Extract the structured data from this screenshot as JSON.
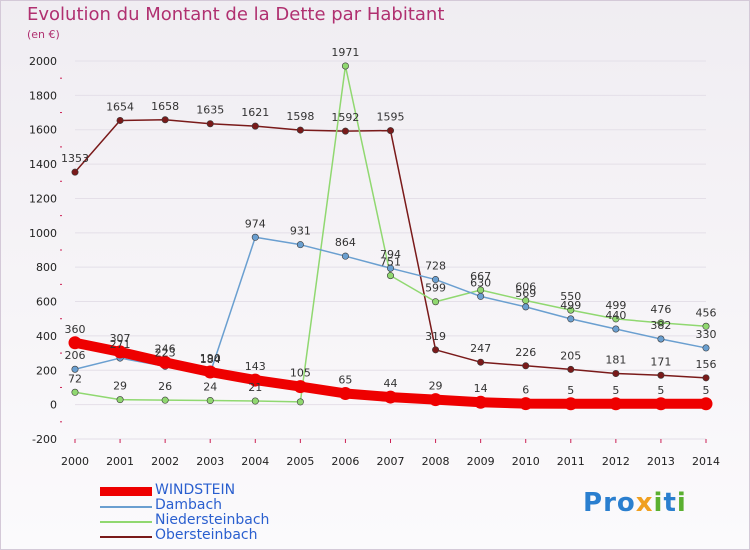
{
  "title": "Evolution du Montant de la Dette par Habitant",
  "subtitle": "(en €)",
  "logo": {
    "chars": [
      "P",
      "r",
      "o",
      "x",
      "i",
      "t",
      "i"
    ],
    "colors": [
      "#2a7fcf",
      "#2a7fcf",
      "#2a7fcf",
      "#f0a020",
      "#5ab030",
      "#2a7fcf",
      "#5ab030"
    ]
  },
  "chart_data": {
    "type": "line",
    "title": "Evolution du Montant de la Dette par Habitant",
    "ylabel": "(en €)",
    "xlabel": "",
    "ylim": [
      -200,
      2000
    ],
    "yticks": [
      -200,
      0,
      200,
      400,
      600,
      800,
      1000,
      1200,
      1400,
      1600,
      1800,
      2000
    ],
    "categories": [
      "2000",
      "2001",
      "2002",
      "2003",
      "2004",
      "2005",
      "2006",
      "2007",
      "2008",
      "2009",
      "2010",
      "2011",
      "2012",
      "2013",
      "2014"
    ],
    "series": [
      {
        "name": "WINDSTEIN",
        "color": "#ee0000",
        "values": [
          360,
          307,
          246,
          190,
          143,
          105,
          65,
          44,
          29,
          14,
          6,
          5,
          5,
          5,
          5
        ],
        "labels": [
          "360",
          "307",
          "246",
          "190",
          "143",
          "105",
          "65",
          "44",
          "29",
          "14",
          "6",
          "5",
          "5",
          "5",
          "5"
        ]
      },
      {
        "name": "Dambach",
        "color": "#6a9fd0",
        "values": [
          206,
          271,
          223,
          184,
          974,
          931,
          864,
          794,
          728,
          630,
          569,
          499,
          440,
          382,
          330
        ],
        "labels": [
          "206",
          "271",
          "223",
          "184",
          "974",
          "931",
          "864",
          "794",
          "728",
          "630",
          "569",
          "499",
          "440",
          "382",
          "330"
        ]
      },
      {
        "name": "Niedersteinbach",
        "color": "#90d870",
        "values": [
          72,
          29,
          26,
          24,
          21,
          16,
          1971,
          751,
          599,
          667,
          606,
          550,
          499,
          476,
          456
        ],
        "labels": [
          "72",
          "29",
          "26",
          "24",
          "21",
          "",
          "1971",
          "751",
          "599",
          "667",
          "606",
          "550",
          "499",
          "476",
          "456"
        ]
      },
      {
        "name": "Obersteinbach",
        "color": "#7a1a1a",
        "values": [
          1353,
          1654,
          1658,
          1635,
          1621,
          1598,
          1592,
          1595,
          319,
          247,
          226,
          205,
          181,
          171,
          156
        ],
        "labels": [
          "1353",
          "1654",
          "1658",
          "1635",
          "1621",
          "1598",
          "1592",
          "1595",
          "319",
          "247",
          "226",
          "205",
          "181",
          "171",
          "156"
        ]
      }
    ]
  }
}
